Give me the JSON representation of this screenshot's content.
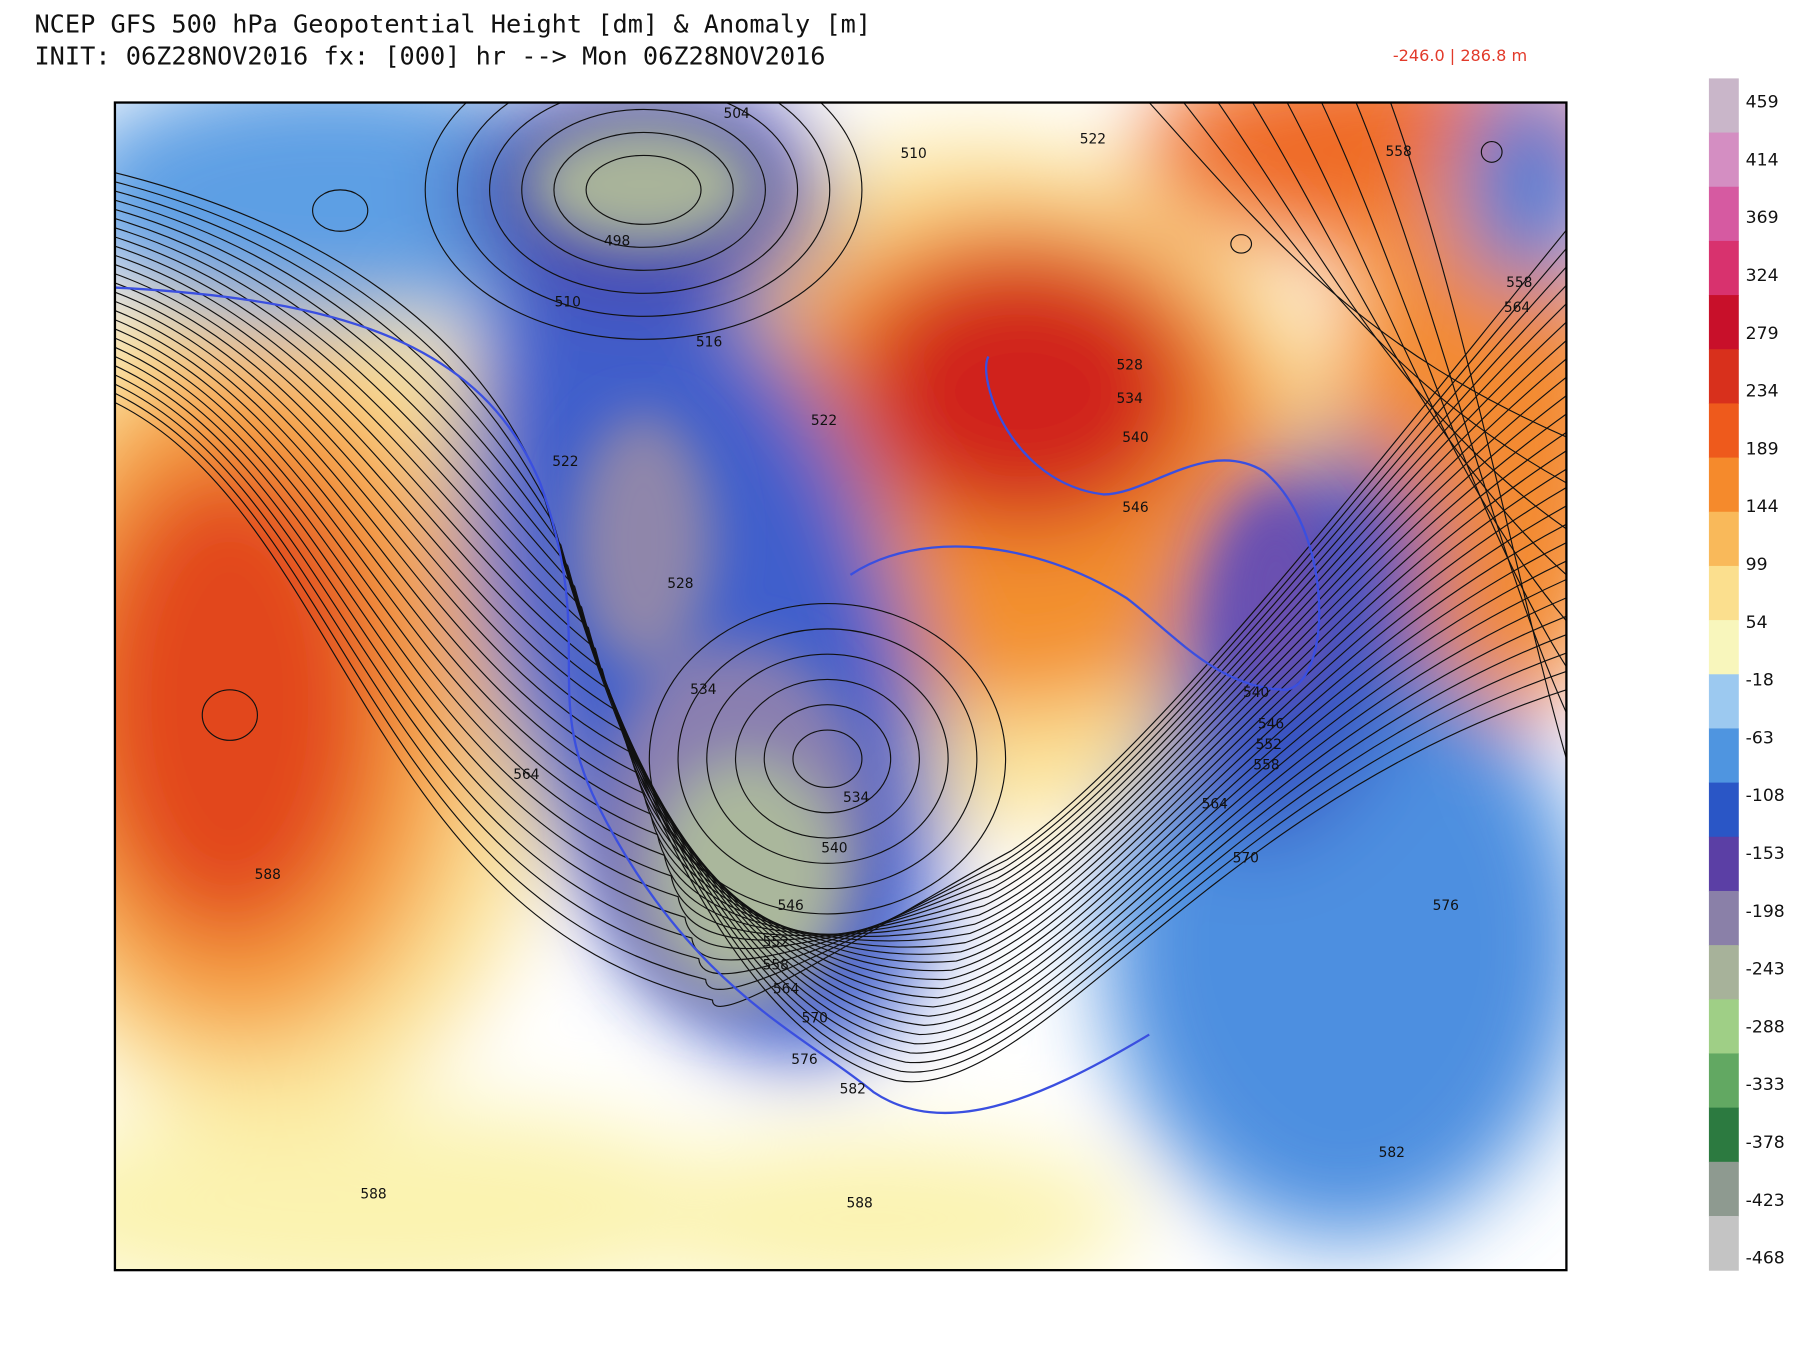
{
  "header": {
    "title": "NCEP GFS 500 hPa Geopotential Height [dm] & Anomaly [m]",
    "subtitle": "INIT: 06Z28NOV2016 fx: [000] hr --> Mon 06Z28NOV2016",
    "range_label": "-246.0 | 286.8 m"
  },
  "colorbar": {
    "labels": [
      459,
      414,
      369,
      324,
      279,
      234,
      189,
      144,
      99,
      54,
      -18,
      -63,
      -108,
      -153,
      -198,
      -243,
      -288,
      -333,
      -378,
      -423,
      -468
    ],
    "colors": [
      "#c9b6c9",
      "#d48ec2",
      "#d65aa1",
      "#d8326e",
      "#c8102a",
      "#d8301c",
      "#ee5a1c",
      "#f58a2c",
      "#f9b95a",
      "#fbdf8e",
      "#f8f6bc",
      "#9cc9f0",
      "#4f95e0",
      "#2a56c6",
      "#5b3fa5",
      "#8a80a8",
      "#a7b29a",
      "#9fcf86",
      "#62a862",
      "#2c7a40",
      "#8e9a90",
      "#c4c4c4"
    ]
  },
  "contour_labels": [
    504,
    498,
    510,
    516,
    510,
    522,
    522,
    558,
    558,
    564,
    528,
    534,
    540,
    546,
    522,
    528,
    534,
    534,
    540,
    546,
    552,
    558,
    564,
    570,
    576,
    582,
    564,
    588,
    588,
    588,
    540,
    546,
    552,
    558,
    564,
    570,
    576,
    582
  ]
}
